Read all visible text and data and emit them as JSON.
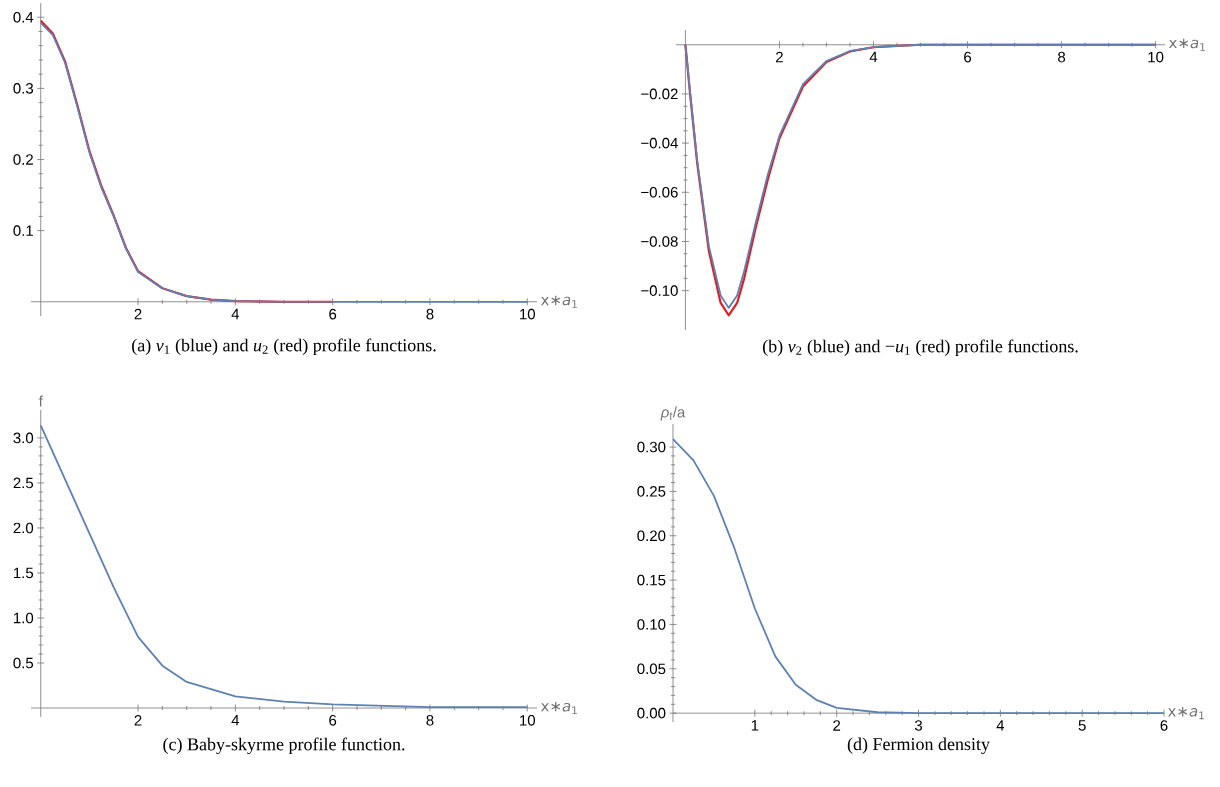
{
  "chart_data": [
    {
      "type": "line",
      "title": "(a) *v*$_{1}$ (blue) and *u*$_{2}$ (red) profile functions.",
      "xlabel": "x∗*a*$_{1}$",
      "x": [
        0,
        0.25,
        0.5,
        0.75,
        1,
        1.25,
        1.5,
        1.75,
        2,
        2.5,
        3,
        3.5,
        4,
        5,
        6,
        8,
        10
      ],
      "series": [
        {
          "color": "#e41a1c",
          "values": [
            0.395,
            0.377,
            0.338,
            0.277,
            0.212,
            0.162,
            0.121,
            0.076,
            0.043,
            0.019,
            0.008,
            0.003,
            0.001,
            0,
            0,
            null,
            null
          ]
        },
        {
          "color": "#5e81b5",
          "values": [
            0.392,
            0.375,
            0.336,
            0.275,
            0.21,
            0.16,
            0.12,
            0.075,
            0.042,
            0.019,
            0.008,
            0.003,
            0.001,
            0,
            0,
            0,
            0
          ]
        }
      ],
      "xlim": [
        -0.2,
        10.2
      ],
      "ylim": [
        -0.02,
        0.42
      ],
      "xticks": [
        2,
        4,
        6,
        8,
        10
      ],
      "yticks": [
        0.1,
        0.2,
        0.3,
        0.4
      ]
    },
    {
      "type": "line",
      "title": "(b) *v*$_{2}$ (blue) and −*u*$_{1}$ (red) profile functions.",
      "xlabel": "x∗*a*$_{1}$",
      "x": [
        0,
        0.1,
        0.25,
        0.5,
        0.75,
        0.92,
        1.1,
        1.25,
        1.5,
        1.75,
        2,
        2.5,
        3,
        3.5,
        4,
        5,
        10
      ],
      "series": [
        {
          "color": "#e41a1c",
          "values": [
            0,
            -0.02,
            -0.048,
            -0.084,
            -0.105,
            -0.11,
            -0.105,
            -0.095,
            -0.074,
            -0.055,
            -0.038,
            -0.017,
            -0.007,
            -0.0027,
            -0.001,
            0,
            0
          ]
        },
        {
          "color": "#5e81b5",
          "values": [
            0,
            -0.0195,
            -0.047,
            -0.082,
            -0.102,
            -0.107,
            -0.102,
            -0.092,
            -0.072,
            -0.053,
            -0.037,
            -0.016,
            -0.0066,
            -0.0026,
            -0.001,
            0,
            0
          ]
        }
      ],
      "xlim": [
        -0.2,
        10.2
      ],
      "ylim": [
        -0.116,
        0.006
      ],
      "xticks": [
        2,
        4,
        6,
        8,
        10
      ],
      "yticks": [
        {
          "value": -0.1,
          "label": "−0.10"
        },
        {
          "value": -0.08,
          "label": "−0.08"
        },
        {
          "value": -0.06,
          "label": "−0.06"
        },
        {
          "value": -0.04,
          "label": "−0.04"
        },
        {
          "value": -0.02,
          "label": "−0.02"
        }
      ]
    },
    {
      "type": "line",
      "title": "(c) Baby-skyrme profile function.",
      "xlabel": "x∗*a*$_{1}$",
      "ylabel": "f",
      "x": [
        0,
        0.5,
        1,
        1.5,
        2,
        2.5,
        3,
        4,
        5,
        6,
        8,
        10
      ],
      "series": [
        {
          "color": "#5e81b5",
          "values": [
            3.14,
            2.54,
            1.94,
            1.34,
            0.79,
            0.47,
            0.29,
            0.13,
            0.07,
            0.04,
            0.01,
            0.01
          ]
        }
      ],
      "xlim": [
        -0.2,
        10.2
      ],
      "ylim": [
        -0.1,
        3.31
      ],
      "xticks": [
        2,
        4,
        6,
        8,
        10
      ],
      "yticks": [
        0.5,
        {
          "value": 1,
          "label": "1.0"
        },
        1.5,
        {
          "value": 2,
          "label": "2.0"
        },
        2.5,
        {
          "value": 3,
          "label": "3.0"
        }
      ]
    },
    {
      "type": "line",
      "title": "(d) Fermion density",
      "xlabel": "x∗*a*$_{1}$",
      "ylabel": "*ρ*$_{f}$/a",
      "x": [
        0,
        0.25,
        0.5,
        0.75,
        1,
        1.25,
        1.5,
        1.75,
        2,
        2.5,
        3,
        6
      ],
      "series": [
        {
          "color": "#5e81b5",
          "values": [
            0.309,
            0.285,
            0.245,
            0.186,
            0.118,
            0.064,
            0.032,
            0.015,
            0.006,
            0.001,
            0,
            0
          ]
        }
      ],
      "xlim": [
        0,
        6
      ],
      "ylim": [
        -0.01,
        0.326
      ],
      "xticks": [
        1,
        2,
        3,
        4,
        5,
        6
      ],
      "yticks": [
        {
          "value": 0,
          "label": "0.00"
        },
        {
          "value": 0.05,
          "label": "0.05"
        },
        {
          "value": 0.1,
          "label": "0.10"
        },
        {
          "value": 0.15,
          "label": "0.15"
        },
        {
          "value": 0.2,
          "label": "0.20"
        },
        {
          "value": 0.25,
          "label": "0.25"
        },
        {
          "value": 0.3,
          "label": "0.30"
        }
      ]
    }
  ]
}
